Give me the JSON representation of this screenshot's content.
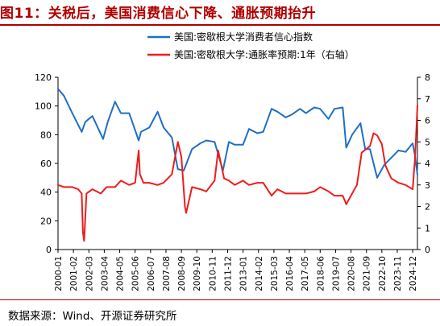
{
  "figure": {
    "title": "图11：关税后，美国消费信心下降、通胀预期抬升",
    "source": "数据来源：Wind、开源证券研究所",
    "title_color": "#b00000"
  },
  "chart_data": {
    "type": "line",
    "x_ticks": [
      "2000-01",
      "2001-02",
      "2002-03",
      "2003-04",
      "2004-05",
      "2005-06",
      "2006-07",
      "2007-08",
      "2008-09",
      "2009-10",
      "2010-11",
      "2011-12",
      "2013-01",
      "2014-02",
      "2015-03",
      "2016-04",
      "2017-05",
      "2018-06",
      "2019-07",
      "2020-08",
      "2021-09",
      "2022-10",
      "2023-11",
      "2024-12"
    ],
    "x_range": [
      "2000-01",
      "2025-04"
    ],
    "y_left": {
      "ticks": [
        "0",
        "20",
        "40",
        "60",
        "80",
        "100",
        "120"
      ],
      "range": [
        0,
        120
      ]
    },
    "y_right": {
      "ticks": [
        "0",
        "1",
        "2",
        "3",
        "4",
        "5",
        "6",
        "7",
        "8"
      ],
      "range": [
        0,
        8
      ]
    },
    "legend_position": "top",
    "grid": false,
    "series": [
      {
        "name": "美国:密歇根大学消费者信心指数",
        "axis": "left",
        "color": "#1f6fc5",
        "x": [
          "2000-01",
          "2000-06",
          "2001-01",
          "2001-09",
          "2001-12",
          "2002-06",
          "2003-03",
          "2003-07",
          "2004-01",
          "2004-06",
          "2005-01",
          "2005-09",
          "2005-11",
          "2006-06",
          "2007-01",
          "2007-06",
          "2008-01",
          "2008-06",
          "2008-11",
          "2009-06",
          "2010-01",
          "2010-06",
          "2011-01",
          "2011-08",
          "2012-01",
          "2012-06",
          "2013-01",
          "2013-06",
          "2014-01",
          "2014-06",
          "2015-01",
          "2015-06",
          "2016-01",
          "2016-06",
          "2017-01",
          "2017-06",
          "2018-01",
          "2018-06",
          "2019-01",
          "2019-06",
          "2020-01",
          "2020-04",
          "2020-09",
          "2021-04",
          "2021-08",
          "2021-12",
          "2022-06",
          "2022-12",
          "2023-06",
          "2023-12",
          "2024-06",
          "2024-12",
          "2025-02",
          "2025-04"
        ],
        "values": [
          112,
          107,
          95,
          82,
          89,
          93,
          77,
          89,
          103,
          95,
          95,
          76,
          82,
          85,
          96,
          85,
          78,
          56,
          55,
          70,
          74,
          76,
          75,
          55,
          75,
          73,
          73,
          84,
          81,
          82,
          98,
          96,
          92,
          94,
          98,
          95,
          99,
          98,
          91,
          98,
          99,
          71,
          80,
          88,
          70,
          70,
          50,
          59,
          64,
          69,
          68,
          74,
          65,
          52
        ]
      },
      {
        "name": "美国:密歇根大学:通胀率预期:1年（右轴）",
        "axis": "right",
        "color": "#ee1c1c",
        "x": [
          "2000-01",
          "2000-06",
          "2001-01",
          "2001-06",
          "2001-09",
          "2001-10",
          "2001-11",
          "2002-01",
          "2002-06",
          "2003-01",
          "2003-06",
          "2004-01",
          "2004-06",
          "2005-01",
          "2005-06",
          "2005-09",
          "2005-10",
          "2006-01",
          "2006-06",
          "2007-01",
          "2007-06",
          "2008-01",
          "2008-06",
          "2008-09",
          "2008-12",
          "2009-01",
          "2009-06",
          "2010-01",
          "2010-06",
          "2011-01",
          "2011-04",
          "2011-09",
          "2012-01",
          "2012-06",
          "2013-01",
          "2013-06",
          "2014-01",
          "2014-06",
          "2015-01",
          "2015-06",
          "2016-01",
          "2016-06",
          "2017-01",
          "2017-06",
          "2018-01",
          "2018-06",
          "2019-01",
          "2019-06",
          "2020-01",
          "2020-04",
          "2020-09",
          "2021-01",
          "2021-05",
          "2021-12",
          "2022-03",
          "2022-06",
          "2022-10",
          "2023-01",
          "2023-06",
          "2023-12",
          "2024-06",
          "2024-12",
          "2025-02",
          "2025-04"
        ],
        "values": [
          3.0,
          2.9,
          2.9,
          2.8,
          2.6,
          0.8,
          0.4,
          2.6,
          2.8,
          2.6,
          2.9,
          2.9,
          3.2,
          3.0,
          3.1,
          4.6,
          3.5,
          3.1,
          3.1,
          3.0,
          3.1,
          3.5,
          5.0,
          4.3,
          2.0,
          1.7,
          2.9,
          2.8,
          2.7,
          3.2,
          4.6,
          3.3,
          3.2,
          3.0,
          3.2,
          3.0,
          3.1,
          3.1,
          2.5,
          2.8,
          2.6,
          2.6,
          2.6,
          2.6,
          2.7,
          2.9,
          2.7,
          2.5,
          2.5,
          2.1,
          2.6,
          3.0,
          4.5,
          4.8,
          5.4,
          5.3,
          4.9,
          3.9,
          3.3,
          3.1,
          3.0,
          2.8,
          4.3,
          6.7
        ]
      }
    ]
  }
}
